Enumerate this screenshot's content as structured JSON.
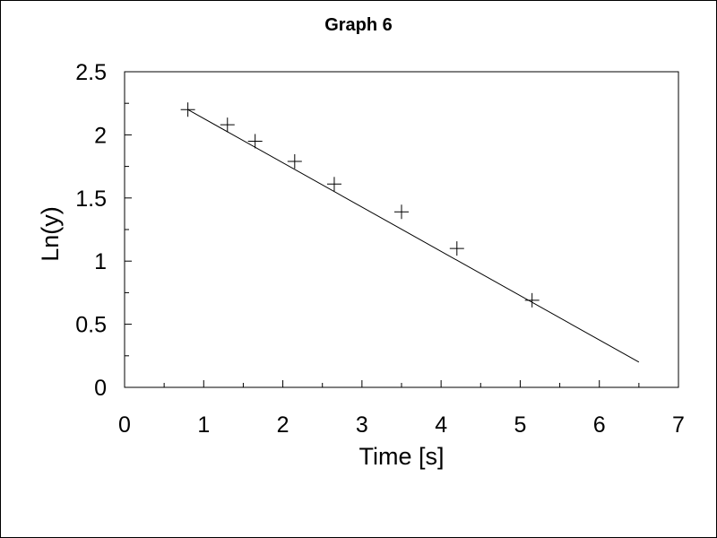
{
  "chart_data": {
    "type": "scatter",
    "title": "Graph 6",
    "xlabel": "Time [s]",
    "ylabel": "Ln(y)",
    "xlim": [
      0,
      7
    ],
    "ylim": [
      0,
      2.5
    ],
    "x_ticks": [
      "0",
      "1",
      "2",
      "3",
      "4",
      "5",
      "6",
      "7"
    ],
    "y_ticks": [
      "0",
      "0.5",
      "1",
      "1.5",
      "2",
      "2.5"
    ],
    "grid": false,
    "legend": "none",
    "series": [
      {
        "marker": "plus",
        "x": [
          0.8,
          1.3,
          1.65,
          2.15,
          2.65,
          3.5,
          4.2,
          5.15
        ],
        "y": [
          2.2,
          2.08,
          1.95,
          1.79,
          1.61,
          1.39,
          1.1,
          0.69
        ]
      }
    ],
    "fit_line": {
      "x": [
        0.8,
        6.5
      ],
      "y": [
        2.2,
        0.2
      ]
    }
  }
}
